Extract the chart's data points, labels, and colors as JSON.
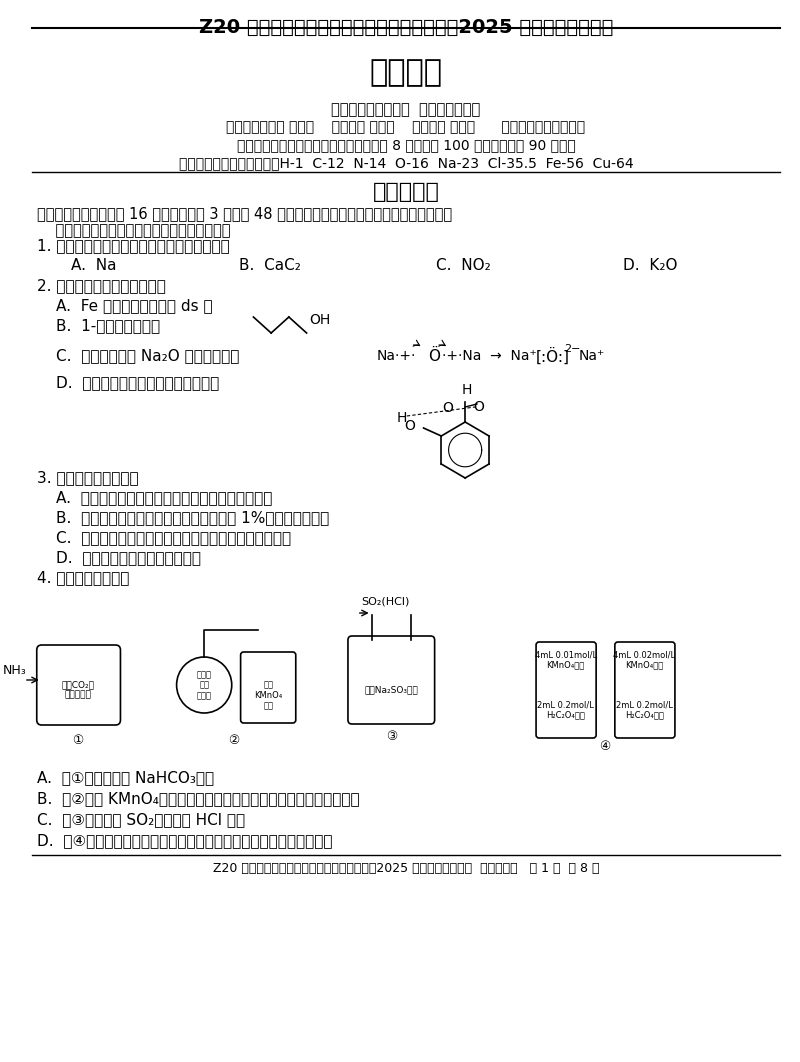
{
  "bg_color": "#ffffff",
  "text_color": "#000000",
  "title1": "Z20 名校联盟（浙江省名校新高考研究联盟）2025 届高三第二次联考",
  "title2": "化学试题",
  "info1": "命题：元济高级中学  雍建红、林珍珍",
  "info2": "磨题：慈溪中学 罗亚金    严州中学 詹建平    桐庐中学 胡榇涵      校稿：苏艳丽、唐新民",
  "info3": "本试题卷分选择题和非选择题两部分，共 8 页，满分 100 分，考试时间 90 分钟。",
  "info4": "可能用到的相对原子质量：H-1  C-12  N-14  O-16  Na-23  Cl-35.5  Fe-56  Cu-64",
  "section1": "选择题部分",
  "instruction": "一、选择题（本大题共 16 小题，每小题 3 分，共 48 分。每小题列出的四个备选项中只有一个是符\n    合题目要求的，不选、多选、错选均不得分）",
  "q1": "1. 常温下能与水反应产生气体的强电解质的是",
  "q1_opts": [
    "A.  Na",
    "B.  CaC₂",
    "C.  NO₂",
    "D.  K₂O"
  ],
  "q2": "2. 下列化学用语表示正确的是",
  "q2a": "A.  Fe 位于元素周期表的 ds 区",
  "q2b": "B.  1-丁醇的键线式：",
  "q2c": "C.  用电子式表示 Na₂O 的形成过程：Na·+·Ö·+·Na → Na⁺[：Ö：]²⁻Na⁺",
  "q2d": "D.  邻羟基苯甲醛分子内氢键示意图：",
  "q3": "3. 下列说法不正确的是",
  "q3a": "A.  液溴易挥发，应保存在棕色细口橡胶塞的试剂瓶",
  "q3b": "B.  皮肤溅上碱液，先用大量水冲洗，再用 1%的硼酸溶液冲洗",
  "q3c": "C.  滴定读数时，应单手持滴定管上端并保持其自然垂直",
  "q3d": "D.  氧化钙易吸水，可用作干燥剂",
  "q4": "4. 下列说法正确的是",
  "q4a": "A.  图①可制取大量 NaHCO₃晶体",
  "q4b": "B.  图②酸性 KMnO₄溶液褪色能证明生成的气体分子中含有碳不饱和键",
  "q4c": "C.  图③用来除去 SO₂气体中的 HCl 杂质",
  "q4d": "D.  图④依据褪色时间的长短，不能证明反应物浓度对反应速率的影响",
  "footer": "Z20 名校联盟（浙江省名校新高考研究联盟）2025 届高三第二次联考  化学试题卷   第 1 页  共 8 页"
}
